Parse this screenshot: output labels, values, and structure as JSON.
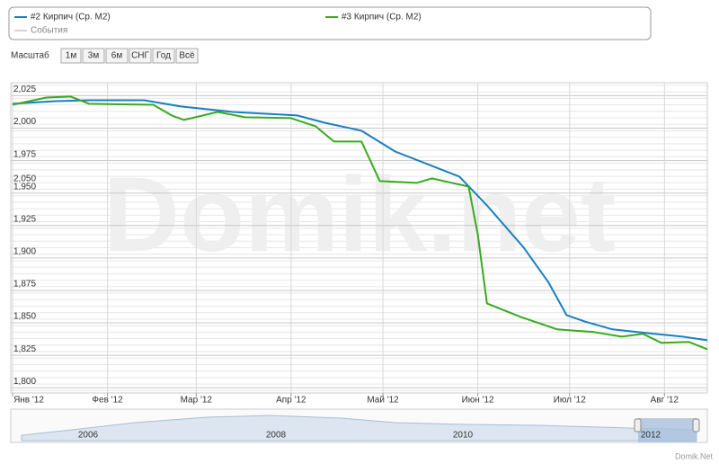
{
  "chart_data": {
    "type": "line",
    "watermark": "Domik.net",
    "credit": "Domik.Net",
    "events_label": "События",
    "stray_label": "2,050",
    "range_selector": {
      "label": "Масштаб",
      "buttons": [
        "1м",
        "3м",
        "6м",
        "СНГ",
        "Год",
        "Всё"
      ]
    },
    "navigator": {
      "years": [
        "2006",
        "2008",
        "2010",
        "2012"
      ]
    },
    "grid": true,
    "xlim": [
      0,
      227
    ],
    "xticks": [
      {
        "value": 0,
        "label": "Янв '12"
      },
      {
        "value": 31,
        "label": "Фев '12"
      },
      {
        "value": 60,
        "label": "Мар '12"
      },
      {
        "value": 91,
        "label": "Апр '12"
      },
      {
        "value": 121,
        "label": "Май '12"
      },
      {
        "value": 152,
        "label": "Июн '12"
      },
      {
        "value": 182,
        "label": "Июл '12"
      },
      {
        "value": 213,
        "label": "Авг '12"
      }
    ],
    "ylim": [
      1796,
      2035
    ],
    "yticks": [
      {
        "value": 1800,
        "label": "1,800"
      },
      {
        "value": 1825,
        "label": "1,825"
      },
      {
        "value": 1850,
        "label": "1,850"
      },
      {
        "value": 1875,
        "label": "1,875"
      },
      {
        "value": 1900,
        "label": "1,900"
      },
      {
        "value": 1925,
        "label": "1,925"
      },
      {
        "value": 1950,
        "label": "1,950"
      },
      {
        "value": 1975,
        "label": "1,975"
      },
      {
        "value": 2000,
        "label": "2,000"
      },
      {
        "value": 2025,
        "label": "2,025"
      }
    ],
    "series": [
      {
        "name": "#2 Кирпич (Ср. М2)",
        "color": "#1a7fc1",
        "x": [
          0,
          14,
          25,
          43,
          55,
          72,
          93,
          102,
          114,
          125,
          137,
          146,
          155,
          167,
          175,
          181,
          187,
          196,
          208,
          219,
          227
        ],
        "values": [
          2018.8,
          2020.8,
          2021.5,
          2021.5,
          2016.7,
          2012.5,
          2009.8,
          2004.2,
          1998,
          1982,
          1971,
          1962.7,
          1940.5,
          1908,
          1881.6,
          1856,
          1851,
          1845,
          1842,
          1839.4,
          1836.6
        ]
      },
      {
        "name": "#3 Кирпич (Ср. М2)",
        "color": "#3aaa1e",
        "x": [
          0,
          11,
          19,
          25,
          46,
          52,
          56,
          67,
          76,
          91,
          99,
          105,
          114,
          120,
          132,
          137,
          149,
          152,
          155,
          166,
          178,
          190,
          199,
          206,
          212,
          221,
          227
        ],
        "values": [
          2018,
          2023.6,
          2024.3,
          2018.8,
          2018,
          2009.8,
          2006.3,
          2012.5,
          2008.4,
          2007.7,
          2001.5,
          1989.7,
          1989.7,
          1959.2,
          1957.8,
          1961.3,
          1955,
          1918.3,
          1865,
          1854.6,
          1845,
          1842.9,
          1839.4,
          1841.5,
          1834.6,
          1835.3,
          1829.7
        ]
      }
    ]
  }
}
